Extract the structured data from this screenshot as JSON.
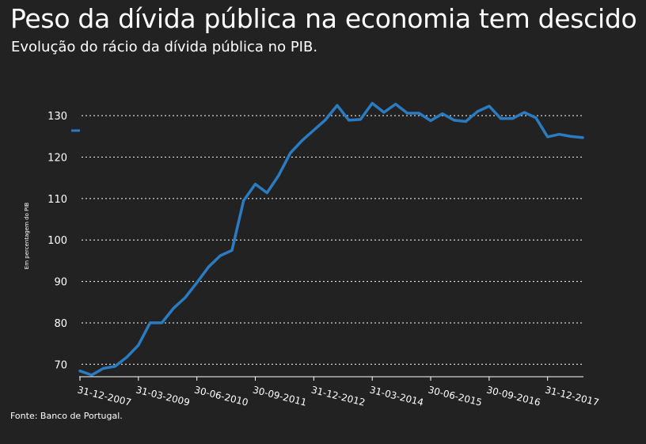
{
  "header": {
    "title": "Peso da dívida pública na economia tem descido",
    "subtitle": "Evolução do rácio da dívida pública no PIB."
  },
  "footer": {
    "source": "Fonte: Banco de Portugal."
  },
  "chart_data": {
    "type": "line",
    "title": "Peso da dívida pública na economia tem descido",
    "subtitle": "Evolução do rácio da dívida pública no PIB.",
    "xlabel": "",
    "ylabel": "Em percentagem do PIB",
    "ylim": [
      67,
      135
    ],
    "yticks": [
      70,
      80,
      90,
      100,
      110,
      120,
      130
    ],
    "grid": true,
    "grid_style": "dotted-horizontal",
    "legend": "none",
    "line_color": "#2b7bc0",
    "x_tick_labels": [
      "31-12-2007",
      "31-03-2009",
      "30-06-2010",
      "30-09-2011",
      "31-12-2012",
      "31-03-2014",
      "30-06-2015",
      "30-09-2016",
      "31-12-2017"
    ],
    "x_tick_index": [
      0,
      5,
      10,
      15,
      20,
      25,
      30,
      35,
      40
    ],
    "series": [
      {
        "name": "",
        "x": [
          "31-12-2007",
          "31-03-2008",
          "30-06-2008",
          "30-09-2008",
          "31-12-2008",
          "31-03-2009",
          "30-06-2009",
          "30-09-2009",
          "31-12-2009",
          "31-03-2010",
          "30-06-2010",
          "30-09-2010",
          "31-12-2010",
          "31-03-2011",
          "30-06-2011",
          "30-09-2011",
          "31-12-2011",
          "31-03-2012",
          "30-06-2012",
          "30-09-2012",
          "31-12-2012",
          "31-03-2013",
          "30-06-2013",
          "30-09-2013",
          "31-12-2013",
          "31-03-2014",
          "30-06-2014",
          "30-09-2014",
          "31-12-2014",
          "31-03-2015",
          "30-06-2015",
          "30-09-2015",
          "31-12-2015",
          "31-03-2016",
          "30-06-2016",
          "30-09-2016",
          "31-12-2016",
          "31-03-2017",
          "30-06-2017",
          "30-09-2017",
          "31-12-2017",
          "31-03-2018",
          "30-06-2018",
          "30-09-2018"
        ],
        "values": [
          68.4,
          67.4,
          69.0,
          69.5,
          71.7,
          74.6,
          80.0,
          80.0,
          83.5,
          86.1,
          89.7,
          93.5,
          96.2,
          97.5,
          109.5,
          113.5,
          111.4,
          115.6,
          121.0,
          124.0,
          126.5,
          129.0,
          132.5,
          128.9,
          129.1,
          133.0,
          130.8,
          132.8,
          130.6,
          130.6,
          128.8,
          130.5,
          128.9,
          128.6,
          131.0,
          132.3,
          129.3,
          129.3,
          130.8,
          129.5,
          124.9,
          125.5,
          125.0,
          124.7
        ]
      }
    ]
  }
}
